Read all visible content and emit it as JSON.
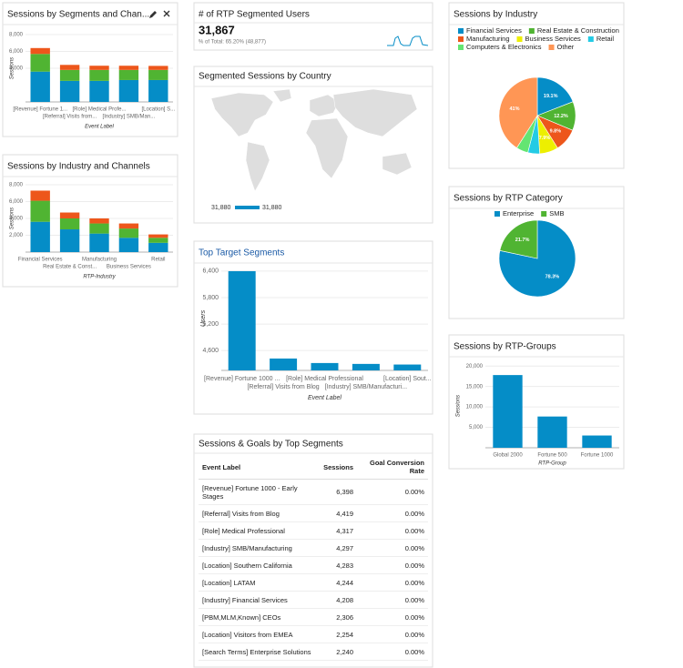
{
  "chart_data": [
    {
      "type": "bar",
      "stacked": true,
      "title": "Sessions by Segments and Chan...",
      "categories": [
        "[Revenue] Fortune 1...",
        "[Referral] Visits from...",
        "[Role] Medical Profe...",
        "[Industry] SMB/Man...",
        "[Location] S..."
      ],
      "series": [
        {
          "color": "#058dc7",
          "values": [
            3600,
            2500,
            2500,
            2600,
            2600
          ]
        },
        {
          "color": "#50b432",
          "values": [
            2100,
            1300,
            1300,
            1200,
            1200
          ]
        },
        {
          "color": "#ed561b",
          "values": [
            700,
            600,
            500,
            500,
            480
          ]
        }
      ],
      "xlabel": "Event Label",
      "ylabel": "Sessions",
      "ylim": [
        0,
        8000
      ],
      "yticks": [
        {
          "value": 4000,
          "label": "4,000"
        },
        {
          "value": 6000,
          "label": "6,000"
        },
        {
          "value": 8000,
          "label": "8,000"
        }
      ],
      "grid": true
    },
    {
      "type": "bar",
      "stacked": true,
      "title": "Sessions by Industry and Channels",
      "categories": [
        "Financial Services",
        "Real Estate & Const...",
        "Manufacturing",
        "Business Services",
        "Retail"
      ],
      "series": [
        {
          "color": "#058dc7",
          "values": [
            3600,
            2700,
            2200,
            1700,
            1100
          ]
        },
        {
          "color": "#50b432",
          "values": [
            2500,
            1300,
            1200,
            1100,
            600
          ]
        },
        {
          "color": "#ed561b",
          "values": [
            1200,
            700,
            600,
            600,
            400
          ]
        }
      ],
      "xlabel": "RTP-Industry",
      "ylabel": "Sessions",
      "ylim": [
        0,
        8000
      ],
      "yticks": [
        {
          "value": 2000,
          "label": "2,000"
        },
        {
          "value": 4000,
          "label": "4,000"
        },
        {
          "value": 6000,
          "label": "6,000"
        },
        {
          "value": 8000,
          "label": "8,000"
        }
      ],
      "grid": true
    },
    {
      "type": "bar",
      "title": "Top Target Segments",
      "categories": [
        "[Revenue] Fortune 1000 ...",
        "[Referral] Visits from Blog",
        "[Role] Medical Professional",
        "[Industry] SMB/Manufacturi...",
        "[Location] Sout..."
      ],
      "values": [
        6398,
        4419,
        4317,
        4297,
        4283
      ],
      "color": "#058dc7",
      "xlabel": "Event Label",
      "ylabel": "Users",
      "ylim": [
        4150,
        6500
      ],
      "yticks": [
        {
          "value": 4600,
          "label": "4,600"
        },
        {
          "value": 5200,
          "label": "5,200"
        },
        {
          "value": 5800,
          "label": "5,800"
        },
        {
          "value": 6400,
          "label": "6,400"
        }
      ],
      "grid": true
    },
    {
      "type": "pie",
      "title": "Sessions by Industry",
      "categories": [
        "Financial Services",
        "Real Estate & Construction",
        "Manufacturing",
        "Business Services",
        "Retail",
        "Computers & Electronics",
        "Other"
      ],
      "values": [
        19.1,
        12.2,
        9.8,
        7.9,
        5.0,
        5.0,
        41
      ],
      "value_labels": [
        "19.1%",
        "12.2%",
        "9.8%",
        "7.9%",
        null,
        null,
        "41%"
      ],
      "colors": [
        "#058dc7",
        "#50b432",
        "#ed561b",
        "#edef00",
        "#24cbe5",
        "#64e572",
        "#ff9655"
      ]
    },
    {
      "type": "pie",
      "title": "Sessions by RTP Category",
      "categories": [
        "Enterprise",
        "SMB"
      ],
      "values": [
        78.3,
        21.7
      ],
      "value_labels": [
        "78.3%",
        "21.7%"
      ],
      "colors": [
        "#058dc7",
        "#50b432"
      ]
    },
    {
      "type": "bar",
      "title": "Sessions by RTP-Groups",
      "categories": [
        "Global 2000",
        "Fortune 500",
        "Fortune 1000"
      ],
      "values": [
        17800,
        7650,
        3000
      ],
      "color": "#058dc7",
      "xlabel": "RTP-Group",
      "ylabel": "Sessions",
      "ylim": [
        0,
        20500
      ],
      "yticks": [
        {
          "value": 5000,
          "label": "5,000"
        },
        {
          "value": 10000,
          "label": "10,000"
        },
        {
          "value": 15000,
          "label": "15,000"
        },
        {
          "value": 20000,
          "label": "20,000"
        }
      ],
      "grid": true
    }
  ],
  "kpi": {
    "title": "# of RTP Segmented Users",
    "value": "31,867",
    "subtitle": "% of Total: 65.20% (48,877)"
  },
  "map": {
    "title": "Segmented Sessions by Country",
    "legend_labels": [
      "31,880",
      "31,880"
    ]
  },
  "table": {
    "title": "Sessions & Goals by Top Segments",
    "columns": [
      "Event Label",
      "Sessions",
      "Goal Conversion Rate"
    ],
    "rows": [
      [
        "[Revenue] Fortune 1000 - Early Stages",
        "6,398",
        "0.00%"
      ],
      [
        "[Referral] Visits from Blog",
        "4,419",
        "0.00%"
      ],
      [
        "[Role] Medical Professional",
        "4,317",
        "0.00%"
      ],
      [
        "[Industry] SMB/Manufacturing",
        "4,297",
        "0.00%"
      ],
      [
        "[Location] Southern California",
        "4,283",
        "0.00%"
      ],
      [
        "[Location] LATAM",
        "4,244",
        "0.00%"
      ],
      [
        "[Industry] Financial Services",
        "4,208",
        "0.00%"
      ],
      [
        "[PBM,MLM,Known] CEOs",
        "2,306",
        "0.00%"
      ],
      [
        "[Location] Visitors from EMEA",
        "2,254",
        "0.00%"
      ],
      [
        "[Search Terms] Enterprise Solutions",
        "2,240",
        "0.00%"
      ]
    ]
  }
}
